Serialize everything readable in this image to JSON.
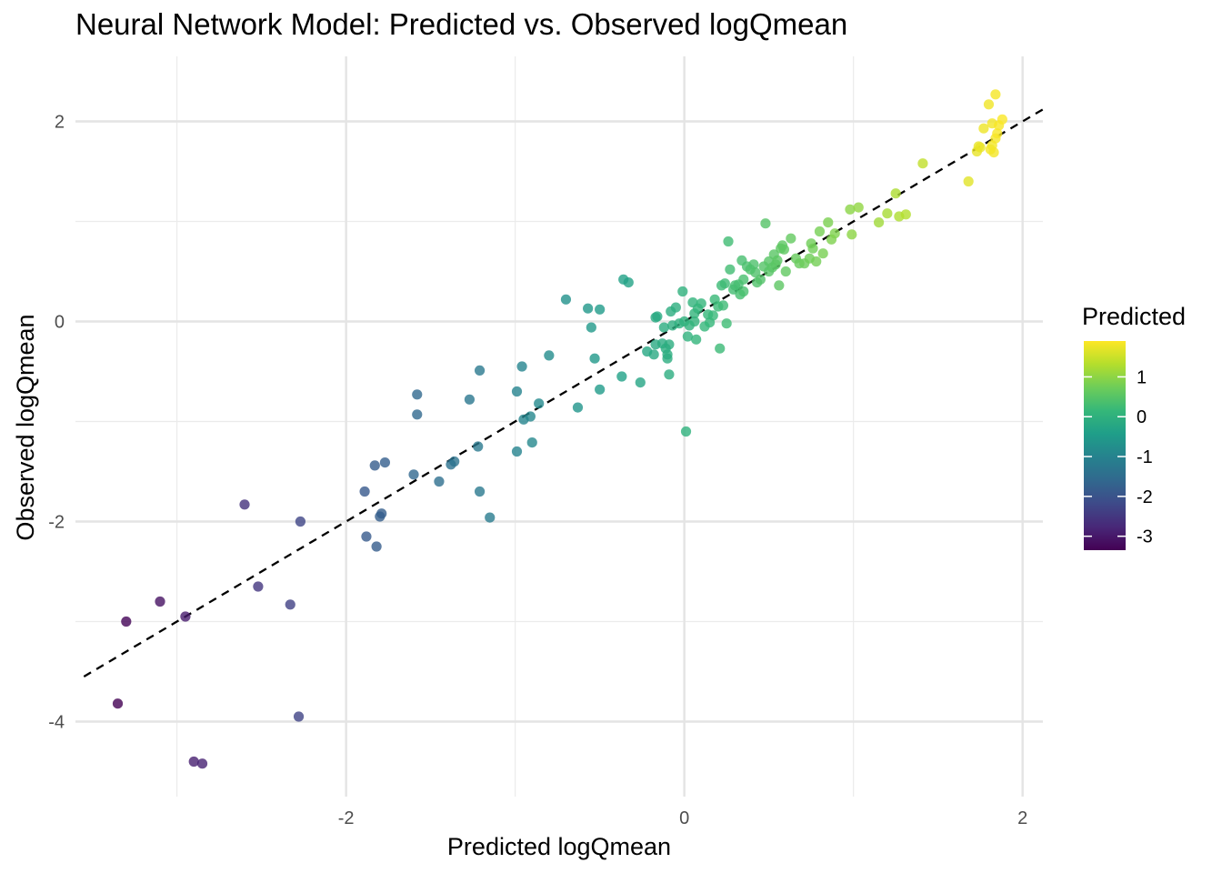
{
  "chart_data": {
    "type": "scatter",
    "title": "Neural Network Model: Predicted vs. Observed logQmean",
    "xlabel": "Predicted logQmean",
    "ylabel": "Observed logQmean",
    "xlim": [
      -3.6,
      2.12
    ],
    "ylim": [
      -4.75,
      2.65
    ],
    "x_ticks": [
      -2,
      0,
      2
    ],
    "y_ticks": [
      2,
      0,
      -2,
      -4
    ],
    "x_tick_labels": [
      "-2",
      "0",
      "2"
    ],
    "y_tick_labels": [
      "2",
      "0",
      "-2",
      "-4"
    ],
    "grid": true,
    "reference_line": {
      "style": "dashed",
      "slope": 1,
      "intercept": 0,
      "color": "#000000"
    },
    "color_scale": {
      "title": "Predicted",
      "palette": "viridis",
      "range": [
        -3.35,
        1.9
      ],
      "ticks": [
        1,
        0,
        -1,
        -2,
        -3
      ],
      "tick_labels": [
        "1",
        "0",
        "-1",
        "-2",
        "-3"
      ],
      "colors": [
        "#440154",
        "#482878",
        "#3E4A89",
        "#31688E",
        "#26828E",
        "#1F9E89",
        "#35B779",
        "#6DCD59",
        "#B4DE2C",
        "#FDE725"
      ]
    },
    "point_opacity": 0.8,
    "points": [
      [
        -3.35,
        -3.82
      ],
      [
        -3.3,
        -3.0
      ],
      [
        -3.1,
        -2.8
      ],
      [
        -2.95,
        -2.95
      ],
      [
        -2.9,
        -4.4
      ],
      [
        -2.85,
        -4.42
      ],
      [
        -2.6,
        -1.83
      ],
      [
        -2.52,
        -2.65
      ],
      [
        -2.33,
        -2.83
      ],
      [
        -2.28,
        -3.95
      ],
      [
        -2.27,
        -2.0
      ],
      [
        -1.89,
        -1.7
      ],
      [
        -1.88,
        -2.15
      ],
      [
        -1.83,
        -1.44
      ],
      [
        -1.82,
        -2.25
      ],
      [
        -1.8,
        -1.95
      ],
      [
        -1.79,
        -1.92
      ],
      [
        -1.77,
        -1.41
      ],
      [
        -1.6,
        -1.53
      ],
      [
        -1.58,
        -0.73
      ],
      [
        -1.58,
        -0.93
      ],
      [
        -1.45,
        -1.6
      ],
      [
        -1.38,
        -1.43
      ],
      [
        -1.36,
        -1.4
      ],
      [
        -1.27,
        -0.78
      ],
      [
        -1.22,
        -1.25
      ],
      [
        -1.21,
        -0.49
      ],
      [
        -1.21,
        -1.7
      ],
      [
        -1.15,
        -1.96
      ],
      [
        -0.99,
        -0.7
      ],
      [
        -0.99,
        -1.3
      ],
      [
        -0.96,
        -0.45
      ],
      [
        -0.95,
        -0.98
      ],
      [
        -0.91,
        -0.95
      ],
      [
        -0.9,
        -1.21
      ],
      [
        -0.86,
        -0.82
      ],
      [
        -0.8,
        -0.34
      ],
      [
        -0.7,
        0.22
      ],
      [
        -0.63,
        -0.86
      ],
      [
        -0.57,
        0.13
      ],
      [
        -0.55,
        -0.06
      ],
      [
        -0.53,
        -0.37
      ],
      [
        -0.5,
        0.12
      ],
      [
        -0.5,
        -0.68
      ],
      [
        -0.37,
        -0.55
      ],
      [
        -0.36,
        0.42
      ],
      [
        -0.33,
        0.39
      ],
      [
        -0.26,
        -0.61
      ],
      [
        -0.22,
        -0.3
      ],
      [
        -0.18,
        -0.33
      ],
      [
        -0.17,
        -0.23
      ],
      [
        -0.17,
        0.04
      ],
      [
        -0.16,
        0.05
      ],
      [
        -0.13,
        -0.22
      ],
      [
        -0.12,
        -0.06
      ],
      [
        -0.11,
        -0.27
      ],
      [
        -0.1,
        -0.33
      ],
      [
        -0.1,
        -0.37
      ],
      [
        -0.09,
        -0.23
      ],
      [
        -0.09,
        -0.53
      ],
      [
        -0.08,
        0.1
      ],
      [
        -0.07,
        -0.04
      ],
      [
        -0.05,
        0.14
      ],
      [
        -0.03,
        -0.02
      ],
      [
        -0.01,
        0.3
      ],
      [
        0.0,
        0.0
      ],
      [
        0.01,
        -1.1
      ],
      [
        0.02,
        -0.15
      ],
      [
        0.03,
        -0.04
      ],
      [
        0.05,
        0.19
      ],
      [
        0.06,
        0.0
      ],
      [
        0.06,
        0.08
      ],
      [
        0.07,
        -0.18
      ],
      [
        0.08,
        0.13
      ],
      [
        0.1,
        0.18
      ],
      [
        0.12,
        -0.05
      ],
      [
        0.14,
        0.07
      ],
      [
        0.15,
        -0.01
      ],
      [
        0.17,
        0.06
      ],
      [
        0.18,
        0.22
      ],
      [
        0.2,
        0.15
      ],
      [
        0.21,
        -0.27
      ],
      [
        0.22,
        0.36
      ],
      [
        0.23,
        0.16
      ],
      [
        0.24,
        0.38
      ],
      [
        0.25,
        -0.02
      ],
      [
        0.26,
        0.8
      ],
      [
        0.27,
        0.52
      ],
      [
        0.29,
        0.32
      ],
      [
        0.3,
        0.36
      ],
      [
        0.32,
        0.37
      ],
      [
        0.33,
        0.27
      ],
      [
        0.34,
        0.61
      ],
      [
        0.35,
        0.42
      ],
      [
        0.35,
        0.3
      ],
      [
        0.37,
        0.55
      ],
      [
        0.39,
        0.52
      ],
      [
        0.41,
        0.57
      ],
      [
        0.42,
        0.49
      ],
      [
        0.43,
        0.39
      ],
      [
        0.45,
        0.42
      ],
      [
        0.47,
        0.55
      ],
      [
        0.48,
        0.98
      ],
      [
        0.5,
        0.6
      ],
      [
        0.5,
        0.5
      ],
      [
        0.52,
        0.54
      ],
      [
        0.53,
        0.67
      ],
      [
        0.54,
        0.57
      ],
      [
        0.55,
        0.61
      ],
      [
        0.56,
        0.36
      ],
      [
        0.57,
        0.73
      ],
      [
        0.58,
        0.76
      ],
      [
        0.59,
        0.72
      ],
      [
        0.6,
        0.5
      ],
      [
        0.63,
        0.83
      ],
      [
        0.66,
        0.63
      ],
      [
        0.68,
        0.58
      ],
      [
        0.71,
        0.58
      ],
      [
        0.74,
        0.63
      ],
      [
        0.75,
        0.78
      ],
      [
        0.76,
        0.73
      ],
      [
        0.78,
        0.6
      ],
      [
        0.8,
        0.9
      ],
      [
        0.82,
        0.68
      ],
      [
        0.85,
        0.99
      ],
      [
        0.87,
        0.82
      ],
      [
        0.89,
        0.88
      ],
      [
        0.98,
        1.12
      ],
      [
        0.99,
        0.87
      ],
      [
        1.03,
        1.14
      ],
      [
        1.15,
        0.99
      ],
      [
        1.2,
        1.08
      ],
      [
        1.25,
        1.28
      ],
      [
        1.27,
        1.05
      ],
      [
        1.31,
        1.07
      ],
      [
        1.41,
        1.58
      ],
      [
        1.68,
        1.4
      ],
      [
        1.73,
        1.7
      ],
      [
        1.74,
        1.75
      ],
      [
        1.75,
        1.74
      ],
      [
        1.77,
        1.93
      ],
      [
        1.8,
        2.17
      ],
      [
        1.81,
        1.72
      ],
      [
        1.82,
        1.76
      ],
      [
        1.82,
        1.98
      ],
      [
        1.83,
        1.69
      ],
      [
        1.84,
        2.27
      ],
      [
        1.84,
        1.83
      ],
      [
        1.85,
        1.88
      ],
      [
        1.86,
        1.96
      ],
      [
        1.88,
        2.02
      ]
    ]
  }
}
